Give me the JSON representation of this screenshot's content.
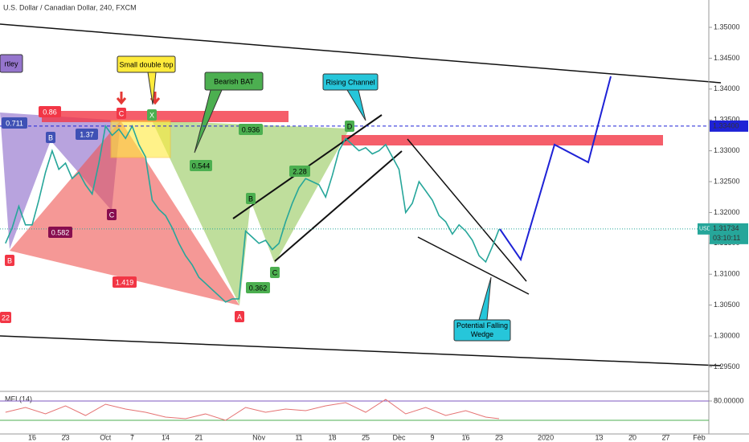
{
  "chart_data": [
    {
      "type": "line",
      "title": "U.S. Dollar / Canadian Dollar, 240, FXCM",
      "x": [
        -4,
        -3,
        -2,
        -1,
        0,
        1,
        2,
        3,
        4,
        5,
        6,
        7,
        8,
        9,
        10,
        11,
        12,
        13,
        14,
        15,
        16,
        17,
        18,
        19,
        20,
        21,
        22,
        23,
        24,
        25,
        26,
        27,
        28,
        29,
        30,
        31,
        32,
        33,
        34,
        35,
        36,
        37,
        38,
        39,
        40,
        41,
        42,
        43,
        44,
        45,
        46,
        47,
        48,
        49,
        50,
        51,
        52,
        53,
        54,
        55,
        56,
        57,
        58,
        59,
        60,
        61,
        62,
        63,
        64,
        65,
        66,
        67,
        68,
        69,
        70
      ],
      "series": [
        {
          "name": "USDCAD",
          "color": "#26a69a",
          "values": [
            1.315,
            1.3175,
            1.321,
            1.318,
            1.318,
            1.322,
            1.3265,
            1.33,
            1.327,
            1.328,
            1.3255,
            1.3265,
            1.3245,
            1.323,
            1.328,
            1.334,
            1.3325,
            1.3335,
            1.332,
            1.334,
            1.331,
            1.329,
            1.322,
            1.3205,
            1.3195,
            1.3175,
            1.315,
            1.313,
            1.3115,
            1.3095,
            1.3085,
            1.3075,
            1.3065,
            1.3055,
            1.306,
            1.306,
            1.317,
            1.316,
            1.315,
            1.3155,
            1.314,
            1.315,
            1.3185,
            1.3215,
            1.324,
            1.3255,
            1.325,
            1.3245,
            1.3225,
            1.326,
            1.33,
            1.332,
            1.331,
            1.33,
            1.3305,
            1.3295,
            1.33,
            1.331,
            1.329,
            1.327,
            1.32,
            1.3215,
            1.325,
            1.3235,
            1.322,
            1.3195,
            1.3185,
            1.3165,
            1.318,
            1.317,
            1.3155,
            1.313,
            1.312,
            1.3145,
            1.3173
          ]
        }
      ],
      "xlim": [
        -4.82,
        101.45
      ],
      "xticks": [
        {
          "value": 0,
          "label": "16"
        },
        {
          "value": 5,
          "label": "23"
        },
        {
          "value": 11,
          "label": "Oct"
        },
        {
          "value": 15,
          "label": "7"
        },
        {
          "value": 20,
          "label": "14"
        },
        {
          "value": 25,
          "label": "21"
        },
        {
          "value": 34,
          "label": "Nov"
        },
        {
          "value": 40,
          "label": "11"
        },
        {
          "value": 45,
          "label": "18"
        },
        {
          "value": 50,
          "label": "25"
        },
        {
          "value": 55,
          "label": "Dec"
        },
        {
          "value": 60,
          "label": "9"
        },
        {
          "value": 65,
          "label": "16"
        },
        {
          "value": 70,
          "label": "23"
        },
        {
          "value": 77,
          "label": "2020"
        },
        {
          "value": 85,
          "label": "13"
        },
        {
          "value": 90,
          "label": "20"
        },
        {
          "value": 95,
          "label": "27"
        },
        {
          "value": 100,
          "label": "Feb"
        }
      ],
      "ylim": [
        1.29128,
        1.35443
      ],
      "yticks": [
        {
          "value": 1.35,
          "label": "1.35000"
        },
        {
          "value": 1.345,
          "label": "1.34500"
        },
        {
          "value": 1.34,
          "label": "1.34000"
        },
        {
          "value": 1.335,
          "label": "1.33500"
        },
        {
          "value": 1.33,
          "label": "1.33000"
        },
        {
          "value": 1.325,
          "label": "1.32500"
        },
        {
          "value": 1.32,
          "label": "1.32000"
        },
        {
          "value": 1.315,
          "label": "1.31500"
        },
        {
          "value": 1.31,
          "label": "1.31000"
        },
        {
          "value": 1.305,
          "label": "1.30500"
        },
        {
          "value": 1.3,
          "label": "1.30000"
        },
        {
          "value": 1.295,
          "label": "1.29500"
        }
      ],
      "hline": {
        "value": 1.334,
        "label": "1.33400"
      },
      "last": {
        "value": 1.31734,
        "label": "1.31734",
        "symbol": "USDCAD",
        "countdown": "03:10:11"
      },
      "annotations": [
        "rtley",
        "Small double top",
        "Bearish BAT",
        "Rising Channel",
        "Potential Falling Wedge",
        "0.711",
        "B",
        "1.37",
        "0.86",
        "C",
        "X",
        "0.936",
        "D",
        "0.544",
        "2.28",
        "B",
        "0.582",
        "C",
        "B",
        "1.419",
        "0.362",
        "C",
        "A",
        "22"
      ]
    },
    {
      "type": "line",
      "title": "MFI (14)",
      "x": [
        -4,
        -1,
        2,
        5,
        8,
        11,
        14,
        17,
        20,
        23,
        26,
        29,
        32,
        35,
        38,
        41,
        44,
        47,
        50,
        53,
        56,
        59,
        62,
        65,
        68,
        70
      ],
      "series": [
        {
          "name": "MFI",
          "color": "#e57373",
          "values": [
            45,
            60,
            40,
            65,
            35,
            70,
            55,
            45,
            30,
            25,
            40,
            20,
            60,
            45,
            55,
            50,
            65,
            75,
            45,
            85,
            40,
            60,
            35,
            50,
            30,
            25
          ]
        }
      ],
      "xlim": [
        -4.82,
        101.45
      ],
      "ylim": [
        2.5,
        102.5
      ],
      "yticks": [
        {
          "value": 80,
          "label": "80.00000"
        }
      ]
    }
  ]
}
